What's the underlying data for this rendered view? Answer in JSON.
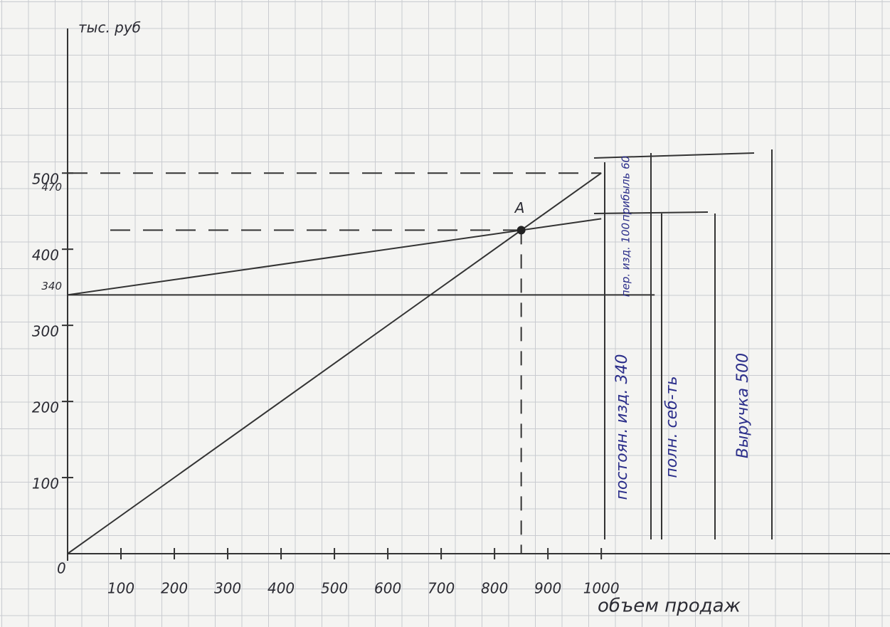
{
  "chart_data": {
    "type": "line",
    "y_label": "тыс. руб",
    "x_label": "объем продаж",
    "origin_label": "0",
    "xlim": [
      0,
      1541
    ],
    "ylim": [
      0,
      690
    ],
    "xticks": [
      100,
      200,
      300,
      400,
      500,
      600,
      700,
      800,
      900,
      1000
    ],
    "yticks": [
      100,
      200,
      300,
      400,
      500
    ],
    "extra_yticks": [
      340,
      470
    ],
    "series": [
      {
        "color": "#555555",
        "x": [
          0,
          1000
        ],
        "values": [
          0,
          500
        ]
      },
      {
        "color": "#555555",
        "x": [
          0,
          1000
        ],
        "values": [
          340,
          440
        ]
      },
      {
        "color": "#555555",
        "x": [
          0,
          1100
        ],
        "values": [
          340,
          340
        ]
      }
    ],
    "point": {
      "label": "A",
      "x": 850,
      "y": 425
    },
    "annotations": [
      "прибыль 60",
      "пер. изд. 100",
      "постоян. изд. 340",
      "полн. себ-ть",
      "Выручка 500"
    ],
    "grid": true
  }
}
